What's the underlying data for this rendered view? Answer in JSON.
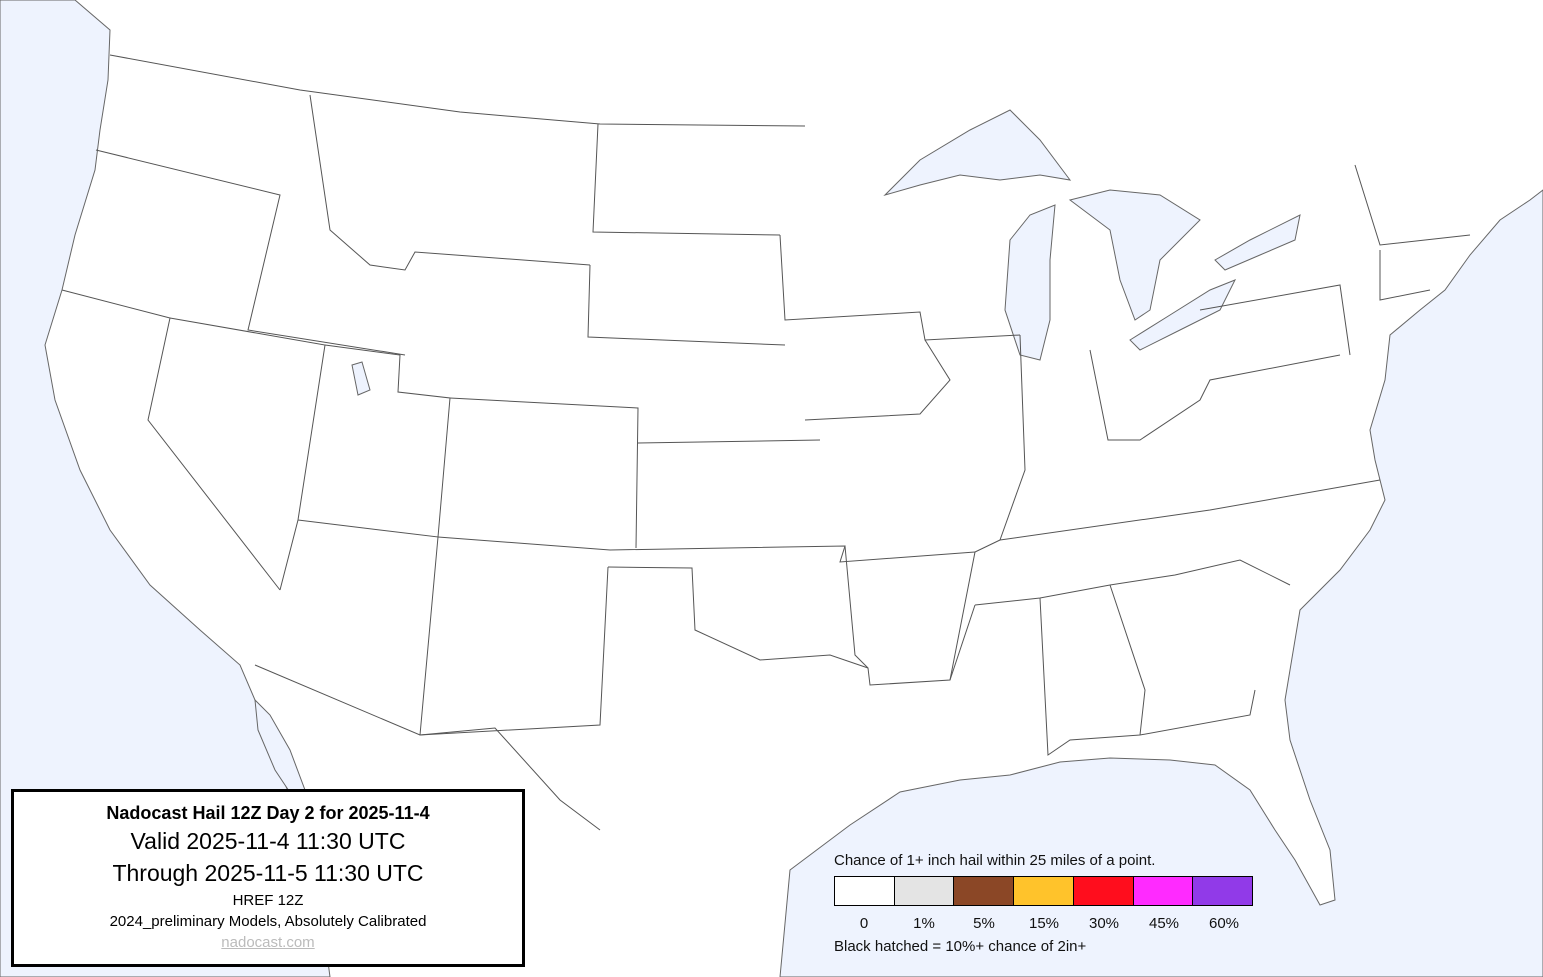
{
  "info": {
    "title": "Nadocast Hail 12Z Day 2 for 2025-11-4",
    "valid": "Valid 2025-11-4 11:30 UTC",
    "through": "Through 2025-11-5 11:30 UTC",
    "model": "HREF 12Z",
    "calibration": "2024_preliminary Models, Absolutely Calibrated",
    "link": "nadocast.com"
  },
  "legend": {
    "title": "Chance of 1+ inch hail within 25 miles of a point.",
    "bins": [
      {
        "label": "0",
        "color": "#ffffff"
      },
      {
        "label": "1%",
        "color": "#e4e4e4"
      },
      {
        "label": "5%",
        "color": "#8b4726"
      },
      {
        "label": "15%",
        "color": "#ffc32b"
      },
      {
        "label": "30%",
        "color": "#ff0d1d"
      },
      {
        "label": "45%",
        "color": "#ff2aff"
      },
      {
        "label": "60%",
        "color": "#913ae8"
      }
    ],
    "note": "Black hatched = 10%+ chance of 2in+"
  },
  "colors": {
    "water": "#eef3fe",
    "land": "#ffffff",
    "borders": "#555555"
  }
}
